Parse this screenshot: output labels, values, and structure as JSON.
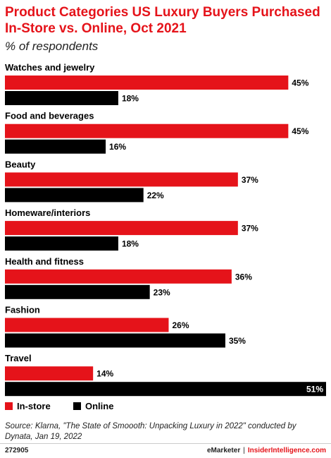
{
  "header": {
    "title": "Product Categories US Luxury Buyers Purchased In-Store vs. Online, Oct 2021",
    "subtitle": "% of respondents"
  },
  "chart_data": {
    "type": "bar",
    "orientation": "horizontal",
    "categories": [
      "Watches and jewelry",
      "Food and beverages",
      "Beauty",
      "Homeware/interiors",
      "Health and fitness",
      "Fashion",
      "Travel"
    ],
    "series": [
      {
        "name": "In-store",
        "color": "#e5131a",
        "values": [
          45,
          45,
          37,
          37,
          36,
          26,
          14
        ],
        "labels": [
          "45%",
          "45%",
          "37%",
          "37%",
          "36%",
          "26%",
          "14%"
        ]
      },
      {
        "name": "Online",
        "color": "#000000",
        "values": [
          18,
          16,
          22,
          18,
          23,
          35,
          51
        ],
        "labels": [
          "18%",
          "16%",
          "22%",
          "18%",
          "23%",
          "35%",
          "51%"
        ]
      }
    ],
    "xlim": [
      0,
      51
    ],
    "grid": false,
    "legend": "bottom-left"
  },
  "footer": {
    "source": "Source: Klarna, \"The State of Smoooth: Unpacking Luxury in 2022\" conducted by Dynata, Jan 19, 2022",
    "chart_id": "272905",
    "brand_a": "eMarketer",
    "separator": "|",
    "brand_b": "InsiderIntelligence.com"
  }
}
